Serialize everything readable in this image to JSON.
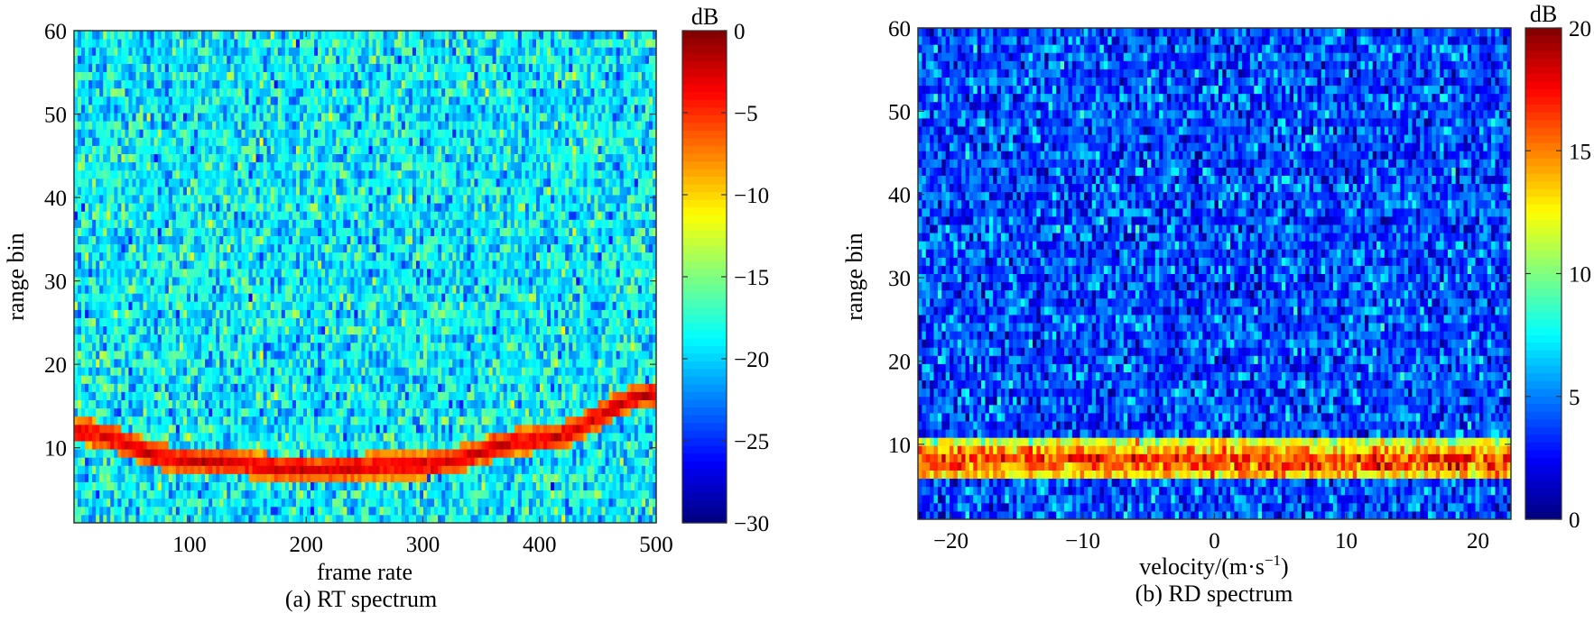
{
  "chart_data": [
    {
      "type": "heatmap",
      "caption": "(a) RT spectrum",
      "xlabel": "frame rate",
      "ylabel": "range bin",
      "colorbar_label": "dB",
      "xlim": [
        1,
        500
      ],
      "ylim": [
        1,
        60
      ],
      "clim": [
        -30,
        0
      ],
      "x_ticks": [
        100,
        200,
        300,
        400,
        500
      ],
      "y_ticks": [
        10,
        20,
        30,
        40,
        50,
        60
      ],
      "colorbar_ticks": [
        0,
        -5,
        -10,
        -15,
        -20,
        -25,
        -30
      ],
      "colormap": "jet",
      "background_level_db": -19,
      "target_track": {
        "description_points": [
          {
            "x": 1,
            "y": 12
          },
          {
            "x": 100,
            "y": 8.5
          },
          {
            "x": 200,
            "y": 7.5
          },
          {
            "x": 300,
            "y": 8
          },
          {
            "x": 400,
            "y": 11
          },
          {
            "x": 500,
            "y": 16.5
          }
        ],
        "level_db": -2
      }
    },
    {
      "type": "heatmap",
      "caption": "(b) RD spectrum",
      "xlabel": "velocity/(m·s",
      "xlabel_sup": "−1",
      "xlabel_end": ")",
      "ylabel": "range bin",
      "colorbar_label": "dB",
      "xlim": [
        -22.5,
        22.5
      ],
      "ylim": [
        1,
        60
      ],
      "clim": [
        0,
        20
      ],
      "x_ticks": [
        -20,
        -10,
        0,
        10,
        20
      ],
      "y_ticks": [
        10,
        20,
        30,
        40,
        50,
        60
      ],
      "colorbar_ticks": [
        20,
        15,
        10,
        5,
        0
      ],
      "colormap": "jet",
      "background_level_db": 4,
      "target_band": {
        "range_bins": [
          6,
          10
        ],
        "peak_bin": 8,
        "level_db": 17
      }
    }
  ]
}
